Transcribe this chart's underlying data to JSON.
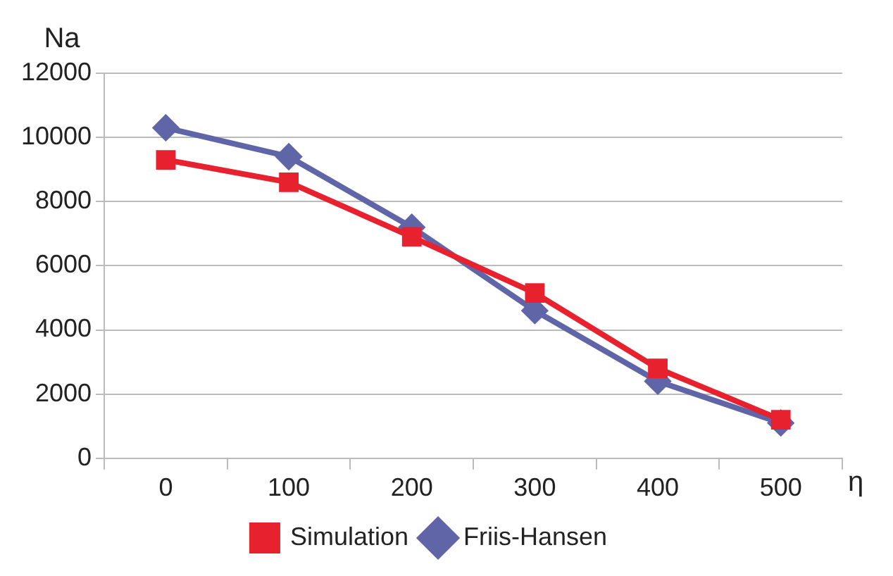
{
  "chart_data": {
    "type": "line",
    "xlabel": "η",
    "ylabel": "Na",
    "categories": [
      "0",
      "100",
      "200",
      "300",
      "400",
      "500"
    ],
    "series": [
      {
        "name": "Friis-Hansen",
        "color": "#6065a8",
        "marker": "diamond",
        "values": [
          10300,
          9400,
          7200,
          4600,
          2400,
          1100
        ]
      },
      {
        "name": "Simulation",
        "color": "#e8212e",
        "marker": "square",
        "values": [
          9300,
          8600,
          6900,
          5150,
          2800,
          1200
        ]
      }
    ],
    "ylim": [
      0,
      12000
    ],
    "yticks": [
      0,
      2000,
      4000,
      6000,
      8000,
      10000,
      12000
    ],
    "grid": "y",
    "legend": "bottom",
    "line_style": "solid"
  }
}
